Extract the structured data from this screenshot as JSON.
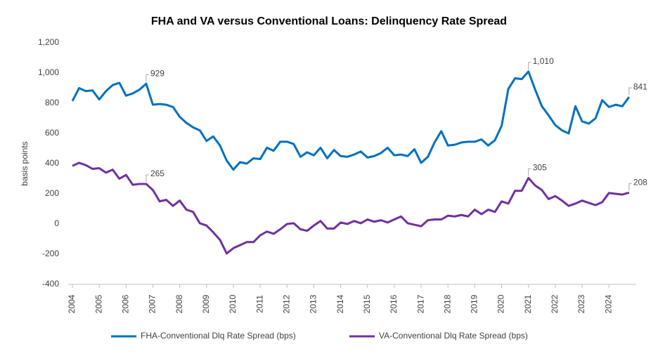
{
  "chart_data": {
    "type": "line",
    "title": "FHA and VA versus Conventional Loans: Delinquency Rate Spread",
    "y_label": "basis points",
    "categories": [
      "2004",
      null,
      null,
      null,
      "2005",
      null,
      null,
      null,
      "2006",
      null,
      null,
      null,
      "2007",
      null,
      null,
      null,
      "2008",
      null,
      null,
      null,
      "2009",
      null,
      null,
      null,
      "2010",
      null,
      null,
      null,
      "2011",
      null,
      null,
      null,
      "2012",
      null,
      null,
      null,
      "2013",
      null,
      null,
      null,
      "2014",
      null,
      null,
      null,
      "2015",
      null,
      null,
      null,
      "2016",
      null,
      null,
      null,
      "2017",
      null,
      null,
      null,
      "2018",
      null,
      null,
      null,
      "2019",
      null,
      null,
      null,
      "2020",
      null,
      null,
      null,
      "2021",
      null,
      null,
      null,
      "2022",
      null,
      null,
      null,
      "2023",
      null,
      null,
      null,
      "2024",
      null,
      null,
      null
    ],
    "series": [
      {
        "name": "FHA-Conventional Dlq Rate Spread (bps)",
        "color": "#0070c0",
        "values": [
          815,
          900,
          880,
          885,
          825,
          880,
          920,
          935,
          850,
          865,
          890,
          929,
          790,
          795,
          790,
          775,
          710,
          670,
          640,
          620,
          550,
          580,
          520,
          420,
          360,
          410,
          400,
          435,
          430,
          505,
          485,
          545,
          545,
          530,
          445,
          475,
          455,
          505,
          435,
          490,
          450,
          445,
          460,
          480,
          440,
          450,
          470,
          505,
          455,
          460,
          450,
          495,
          405,
          445,
          540,
          615,
          520,
          525,
          540,
          545,
          545,
          560,
          520,
          555,
          650,
          895,
          965,
          960,
          1010,
          890,
          780,
          720,
          655,
          620,
          600,
          780,
          680,
          665,
          700,
          820,
          775,
          790,
          780,
          841
        ],
        "value_labels": [
          null,
          null,
          null,
          null,
          null,
          null,
          null,
          null,
          null,
          null,
          null,
          "929",
          null,
          null,
          null,
          null,
          null,
          null,
          null,
          null,
          null,
          null,
          null,
          null,
          null,
          null,
          null,
          null,
          null,
          null,
          null,
          null,
          null,
          null,
          null,
          null,
          null,
          null,
          null,
          null,
          null,
          null,
          null,
          null,
          null,
          null,
          null,
          null,
          null,
          null,
          null,
          null,
          null,
          null,
          null,
          null,
          null,
          null,
          null,
          null,
          null,
          null,
          null,
          null,
          null,
          null,
          null,
          null,
          "1,010",
          null,
          null,
          null,
          null,
          null,
          null,
          null,
          null,
          null,
          null,
          null,
          null,
          null,
          null,
          "841"
        ]
      },
      {
        "name": "VA-Conventional Dlq Rate Spread (bps)",
        "color": "#7030a0",
        "values": [
          385,
          405,
          390,
          365,
          370,
          340,
          360,
          300,
          325,
          260,
          265,
          265,
          225,
          150,
          160,
          120,
          155,
          95,
          80,
          5,
          -10,
          -55,
          -105,
          -195,
          -160,
          -140,
          -120,
          -120,
          -75,
          -50,
          -65,
          -35,
          0,
          5,
          -35,
          -45,
          -10,
          20,
          -30,
          -30,
          10,
          0,
          20,
          5,
          30,
          15,
          25,
          10,
          30,
          50,
          5,
          -5,
          -15,
          25,
          30,
          30,
          55,
          50,
          60,
          50,
          95,
          65,
          95,
          80,
          150,
          135,
          220,
          220,
          305,
          255,
          225,
          165,
          185,
          155,
          120,
          135,
          155,
          140,
          125,
          145,
          205,
          200,
          195,
          208
        ],
        "value_labels": [
          null,
          null,
          null,
          null,
          null,
          null,
          null,
          null,
          null,
          null,
          null,
          "265",
          null,
          null,
          null,
          null,
          null,
          null,
          null,
          null,
          null,
          null,
          null,
          null,
          null,
          null,
          null,
          null,
          null,
          null,
          null,
          null,
          null,
          null,
          null,
          null,
          null,
          null,
          null,
          null,
          null,
          null,
          null,
          null,
          null,
          null,
          null,
          null,
          null,
          null,
          null,
          null,
          null,
          null,
          null,
          null,
          null,
          null,
          null,
          null,
          null,
          null,
          null,
          null,
          null,
          null,
          null,
          null,
          "305",
          null,
          null,
          null,
          null,
          null,
          null,
          null,
          null,
          null,
          null,
          null,
          null,
          null,
          null,
          "208"
        ]
      }
    ],
    "ylim": [
      -400,
      1200
    ],
    "yticks": [
      -400,
      -200,
      0,
      200,
      400,
      600,
      800,
      {
        "value": 1000,
        "label": "1,000"
      },
      {
        "value": 1200,
        "label": "1,200"
      }
    ],
    "grid": false,
    "legend": "bottom"
  }
}
